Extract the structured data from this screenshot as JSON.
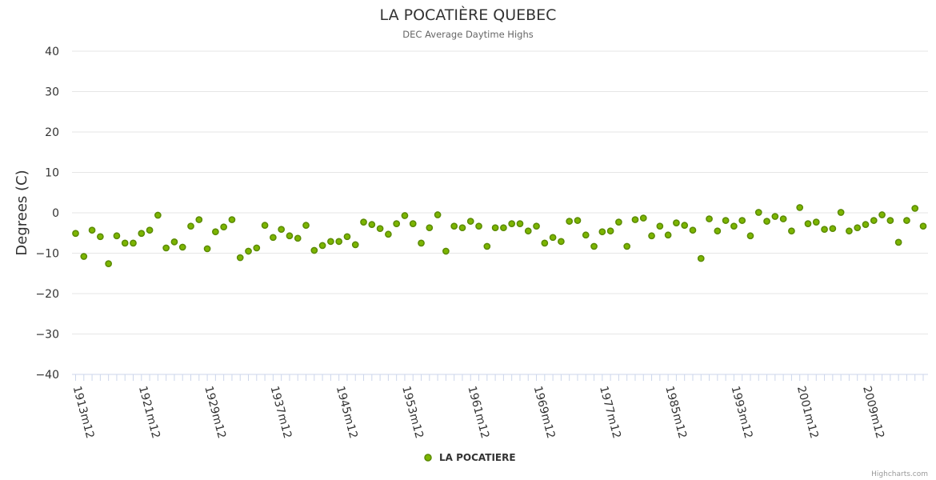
{
  "chart_data": {
    "type": "scatter",
    "title": "LA POCATIÈRE QUEBEC",
    "subtitle": "DEC Average Daytime Highs",
    "ylabel": "Degrees (C)",
    "xlabel": "",
    "ylim": [
      -40,
      40
    ],
    "yticks": [
      40,
      30,
      20,
      10,
      0,
      -10,
      -20,
      -30,
      -40
    ],
    "x_tick_labels": [
      "1913m12",
      "1921m12",
      "1929m12",
      "1937m12",
      "1945m12",
      "1953m12",
      "1961m12",
      "1969m12",
      "1977m12",
      "1985m12",
      "1993m12",
      "2001m12",
      "2009m12"
    ],
    "grid": true,
    "legend": "bottom-center",
    "x_start_year": 1913,
    "x_end_year": 2016,
    "series": [
      {
        "name": "LA POCATIERE",
        "color": "#7cb500",
        "x": [
          1913,
          1914,
          1915,
          1916,
          1917,
          1918,
          1919,
          1920,
          1921,
          1922,
          1923,
          1924,
          1925,
          1926,
          1927,
          1928,
          1929,
          1930,
          1931,
          1932,
          1933,
          1934,
          1935,
          1936,
          1937,
          1938,
          1939,
          1940,
          1941,
          1942,
          1943,
          1944,
          1945,
          1946,
          1947,
          1948,
          1949,
          1950,
          1951,
          1952,
          1953,
          1954,
          1955,
          1956,
          1957,
          1958,
          1959,
          1960,
          1961,
          1962,
          1963,
          1964,
          1965,
          1966,
          1967,
          1968,
          1969,
          1970,
          1971,
          1972,
          1973,
          1974,
          1975,
          1976,
          1977,
          1978,
          1979,
          1980,
          1981,
          1982,
          1983,
          1984,
          1985,
          1986,
          1987,
          1988,
          1989,
          1990,
          1991,
          1992,
          1993,
          1994,
          1995,
          1996,
          1997,
          1998,
          1999,
          2000,
          2001,
          2002,
          2003,
          2004,
          2005,
          2006,
          2007,
          2008,
          2009,
          2010,
          2011,
          2012,
          2013,
          2014,
          2015,
          2016
        ],
        "values": [
          -5.1,
          -10.8,
          -4.3,
          -5.9,
          -12.6,
          -5.7,
          -7.5,
          -7.5,
          -5.1,
          -4.3,
          -0.6,
          -8.7,
          -7.2,
          -8.5,
          -3.3,
          -1.7,
          -8.9,
          -4.7,
          -3.5,
          -1.7,
          -11.1,
          -9.5,
          -8.7,
          -3.1,
          -6.1,
          -4.1,
          -5.7,
          -6.3,
          -3.1,
          -9.3,
          -8.1,
          -7.1,
          -7.1,
          -5.9,
          -7.9,
          -2.3,
          -2.9,
          -3.9,
          -5.3,
          -2.7,
          -0.7,
          -2.7,
          -7.5,
          -3.7,
          -0.5,
          -9.5,
          -3.3,
          -3.7,
          -2.1,
          -3.3,
          -8.3,
          -3.7,
          -3.7,
          -2.7,
          -2.7,
          -4.5,
          -3.3,
          -7.5,
          -6.1,
          -7.1,
          -2.1,
          -1.9,
          -5.5,
          -8.3,
          -4.7,
          -4.5,
          -2.3,
          -8.3,
          -1.7,
          -1.3,
          -5.7,
          -3.3,
          -5.5,
          -2.5,
          -3.1,
          -4.3,
          -11.3,
          -1.5,
          -4.5,
          -1.9,
          -3.3,
          -1.9,
          -5.7,
          0.1,
          -2.1,
          -0.9,
          -1.5,
          -4.5,
          1.3,
          -2.7,
          -2.3,
          -4.1,
          -3.9,
          0.1,
          -4.5,
          -3.7,
          -2.9,
          -1.9,
          -0.5,
          -1.9,
          -7.3,
          -1.9,
          1.1,
          -3.3
        ]
      }
    ]
  },
  "credits": "Highcharts.com"
}
